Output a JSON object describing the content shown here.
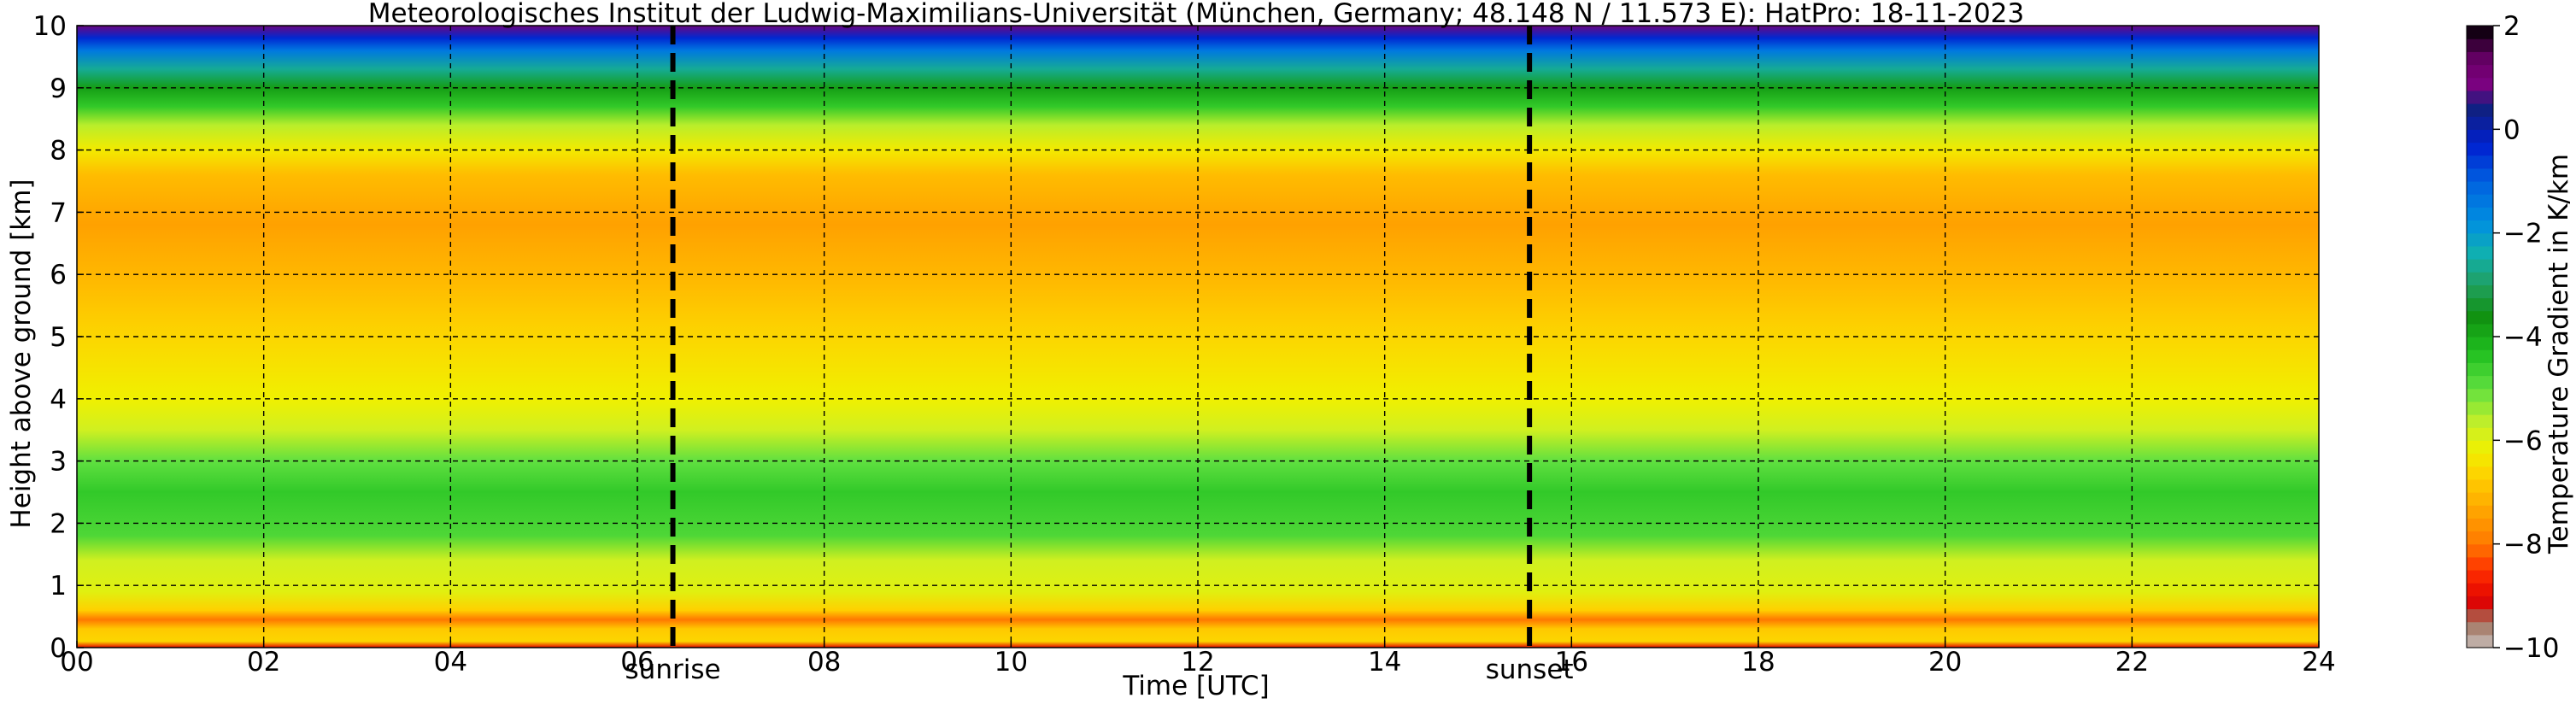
{
  "chart_data": {
    "type": "heatmap",
    "title": "Meteorologisches Institut der Ludwig-Maximilians-Universität (München, Germany; 48.148 N / 11.573 E):    HatPro: 18-11-2023",
    "xlabel": "Time [UTC]",
    "ylabel": "Height above ground [km]",
    "xlim": [
      0,
      24
    ],
    "ylim": [
      0,
      10
    ],
    "x_ticks": [
      "00",
      "02",
      "04",
      "06",
      "08",
      "10",
      "12",
      "14",
      "16",
      "18",
      "20",
      "22",
      "24"
    ],
    "y_ticks": [
      "0",
      "1",
      "2",
      "3",
      "4",
      "5",
      "6",
      "7",
      "8",
      "9",
      "10"
    ],
    "grid": true,
    "colorbar": {
      "label": "Temperature Gradient in K/km",
      "range": [
        -10,
        2
      ],
      "ticks": [
        "−10",
        "−8",
        "−6",
        "−4",
        "−2",
        "0",
        "2"
      ],
      "stops": [
        {
          "v": -10,
          "color": "#c8c0bc"
        },
        {
          "v": -9.5,
          "color": "#a0705a"
        },
        {
          "v": -9.1,
          "color": "#e00000"
        },
        {
          "v": -8.5,
          "color": "#ff3000"
        },
        {
          "v": -8.0,
          "color": "#ff7800"
        },
        {
          "v": -7.3,
          "color": "#ffa800"
        },
        {
          "v": -6.7,
          "color": "#ffd000"
        },
        {
          "v": -6.2,
          "color": "#f0f000"
        },
        {
          "v": -5.7,
          "color": "#c8f028"
        },
        {
          "v": -5.0,
          "color": "#60e040"
        },
        {
          "v": -4.3,
          "color": "#20c020"
        },
        {
          "v": -3.6,
          "color": "#109010"
        },
        {
          "v": -3.0,
          "color": "#20a060"
        },
        {
          "v": -2.4,
          "color": "#10b0b0"
        },
        {
          "v": -1.8,
          "color": "#0090e0"
        },
        {
          "v": -1.0,
          "color": "#0060e0"
        },
        {
          "v": -0.3,
          "color": "#0020d0"
        },
        {
          "v": 0.4,
          "color": "#102080"
        },
        {
          "v": 0.9,
          "color": "#800080"
        },
        {
          "v": 1.4,
          "color": "#600060"
        },
        {
          "v": 2.0,
          "color": "#000000"
        }
      ]
    },
    "profile": [
      {
        "h": 0.0,
        "g": -9.0
      },
      {
        "h": 0.1,
        "g": -6.6
      },
      {
        "h": 0.3,
        "g": -6.8
      },
      {
        "h": 0.45,
        "g": -8.0
      },
      {
        "h": 0.6,
        "g": -6.7
      },
      {
        "h": 0.9,
        "g": -6.0
      },
      {
        "h": 1.4,
        "g": -5.8
      },
      {
        "h": 1.8,
        "g": -4.8
      },
      {
        "h": 2.5,
        "g": -4.5
      },
      {
        "h": 3.0,
        "g": -5.0
      },
      {
        "h": 3.5,
        "g": -5.8
      },
      {
        "h": 4.0,
        "g": -6.2
      },
      {
        "h": 5.0,
        "g": -6.6
      },
      {
        "h": 5.8,
        "g": -7.0
      },
      {
        "h": 6.8,
        "g": -7.4
      },
      {
        "h": 7.6,
        "g": -7.0
      },
      {
        "h": 8.0,
        "g": -6.3
      },
      {
        "h": 8.4,
        "g": -5.6
      },
      {
        "h": 8.7,
        "g": -4.5
      },
      {
        "h": 9.0,
        "g": -3.8
      },
      {
        "h": 9.3,
        "g": -2.6
      },
      {
        "h": 9.6,
        "g": -1.4
      },
      {
        "h": 9.8,
        "g": -0.4
      },
      {
        "h": 10.0,
        "g": 0.8
      }
    ],
    "events": [
      {
        "label": "sunrise",
        "time": 6.38
      },
      {
        "label": "sunset",
        "time": 15.55
      }
    ]
  }
}
